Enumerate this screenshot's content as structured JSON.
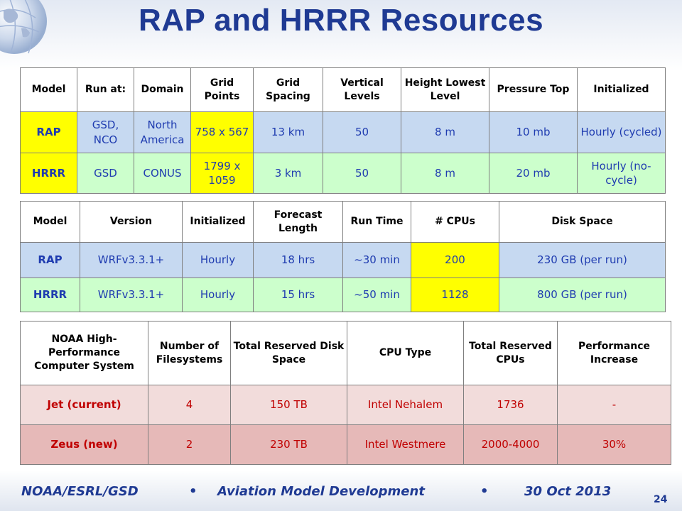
{
  "title": "RAP and HRRR Resources",
  "colors": {
    "title": "#1f3a93",
    "row_rap": "#c6d9f1",
    "row_hrrr": "#ccffcc",
    "highlight": "#ffff00",
    "jet_row": "#f2dcdb",
    "zeus_row": "#e6b9b8",
    "text_blue": "#1f3cb0",
    "text_red": "#c00000"
  },
  "table1": {
    "headers": [
      "Model",
      "Run at:",
      "Domain",
      "Grid Points",
      "Grid Spacing",
      "Vertical Levels",
      "Height Lowest Level",
      "Pressure Top",
      "Initialized"
    ],
    "rows": [
      [
        "RAP",
        "GSD, NCO",
        "North America",
        "758 x 567",
        "13 km",
        "50",
        "8 m",
        "10 mb",
        "Hourly (cycled)"
      ],
      [
        "HRRR",
        "GSD",
        "CONUS",
        "1799 x 1059",
        "3 km",
        "50",
        "8 m",
        "20 mb",
        "Hourly (no-cycle)"
      ]
    ]
  },
  "table2": {
    "headers": [
      "Model",
      "Version",
      "Initialized",
      "Forecast Length",
      "Run Time",
      "# CPUs",
      "Disk Space"
    ],
    "rows": [
      [
        "RAP",
        "WRFv3.3.1+",
        "Hourly",
        "18 hrs",
        "~30 min",
        "200",
        "230 GB (per run)"
      ],
      [
        "HRRR",
        "WRFv3.3.1+",
        "Hourly",
        "15 hrs",
        "~50 min",
        "1128",
        "800 GB (per run)"
      ]
    ]
  },
  "table3": {
    "headers": [
      "NOAA High-Performance Computer System",
      "Number of Filesystems",
      "Total Reserved Disk Space",
      "CPU Type",
      "Total Reserved CPUs",
      "Performance Increase"
    ],
    "rows": [
      [
        "Jet (current)",
        "4",
        "150 TB",
        "Intel Nehalem",
        "1736",
        "-"
      ],
      [
        "Zeus (new)",
        "2",
        "230 TB",
        "Intel Westmere",
        "2000-4000",
        "30%"
      ]
    ]
  },
  "footer": {
    "org": "NOAA/ESRL/GSD",
    "bullet": "•",
    "topic": "Aviation Model Development",
    "date": "30 Oct 2013",
    "page": "24"
  },
  "icons": {
    "logo": "globe-icon"
  }
}
